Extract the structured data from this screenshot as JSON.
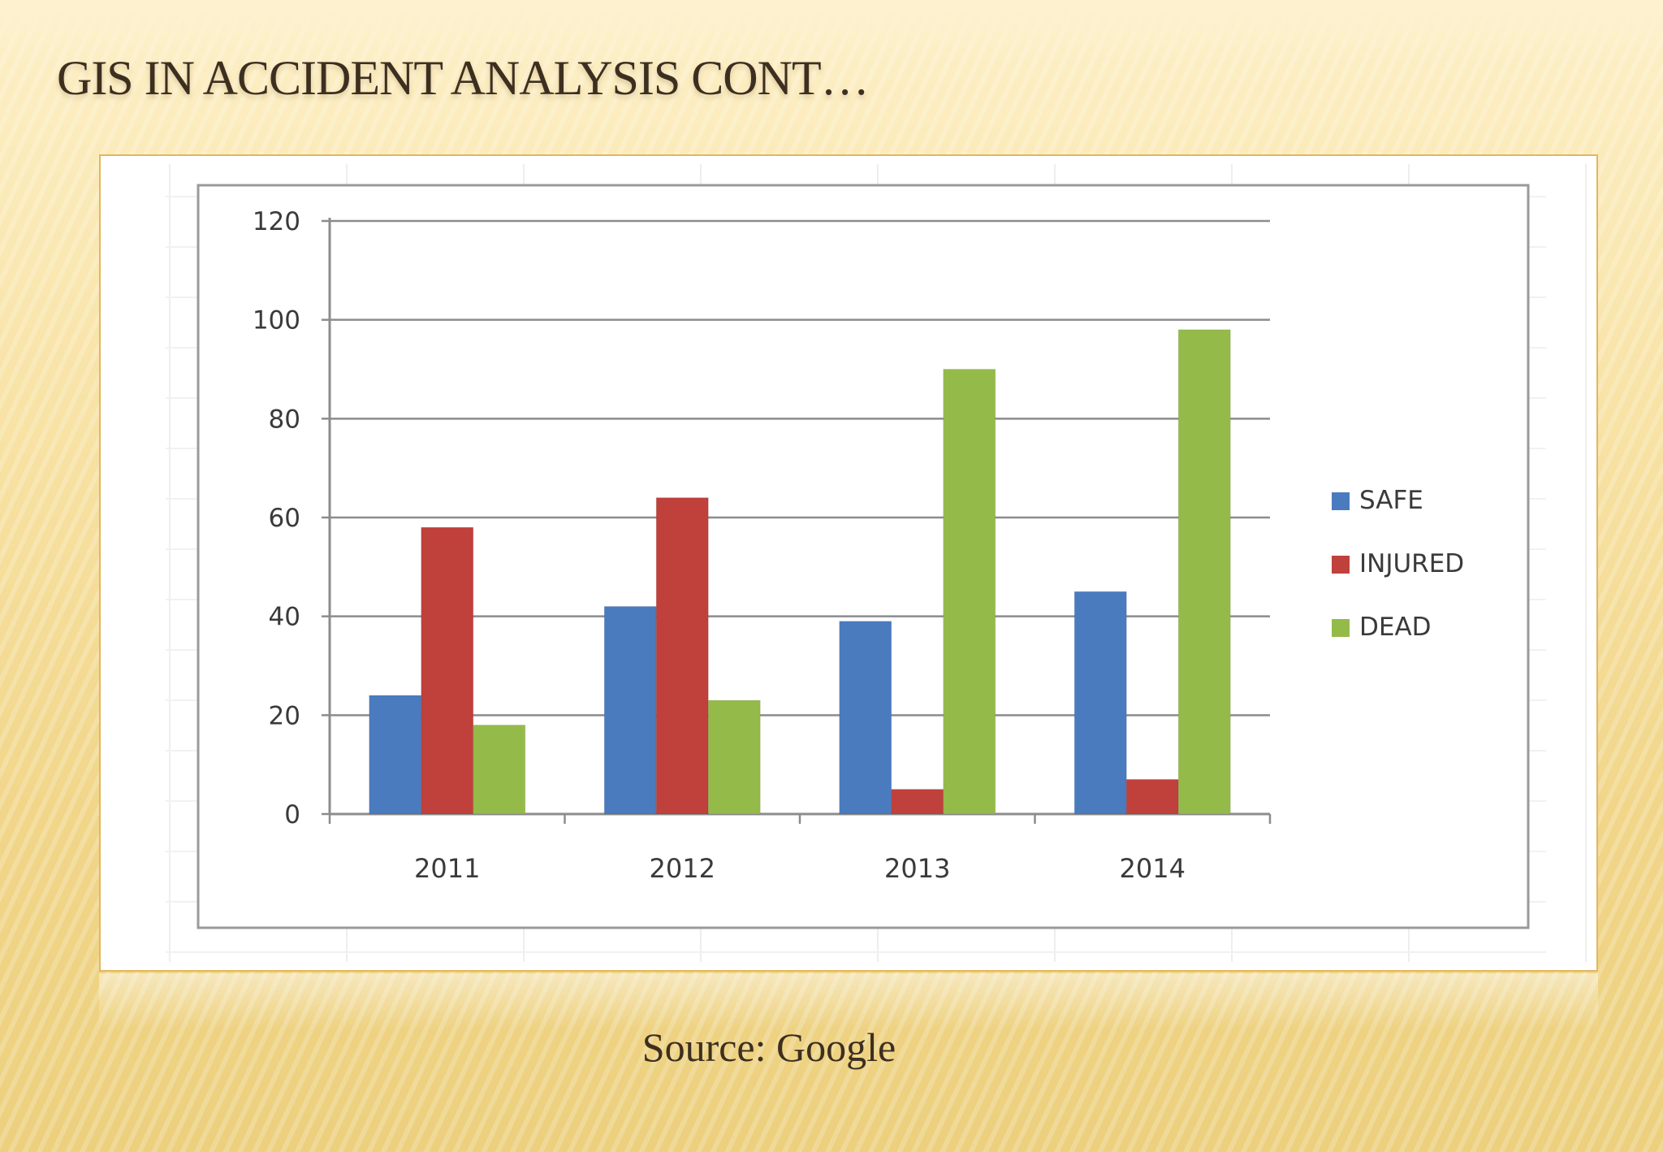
{
  "slide": {
    "title": "GIS IN ACCIDENT ANALYSIS CONT…",
    "source": "Source: Google"
  },
  "chart_data": {
    "type": "bar",
    "categories": [
      "2011",
      "2012",
      "2013",
      "2014"
    ],
    "series": [
      {
        "name": "SAFE",
        "color": "#4a7bbf",
        "values": [
          24,
          42,
          39,
          45
        ]
      },
      {
        "name": "INJURED",
        "color": "#c0403c",
        "values": [
          58,
          64,
          5,
          7
        ]
      },
      {
        "name": "DEAD",
        "color": "#94bb4a",
        "values": [
          18,
          23,
          90,
          98
        ]
      }
    ],
    "yticks": [
      0,
      20,
      40,
      60,
      80,
      100,
      120
    ],
    "ylim": [
      0,
      120
    ],
    "grid": true,
    "legend": "right"
  }
}
